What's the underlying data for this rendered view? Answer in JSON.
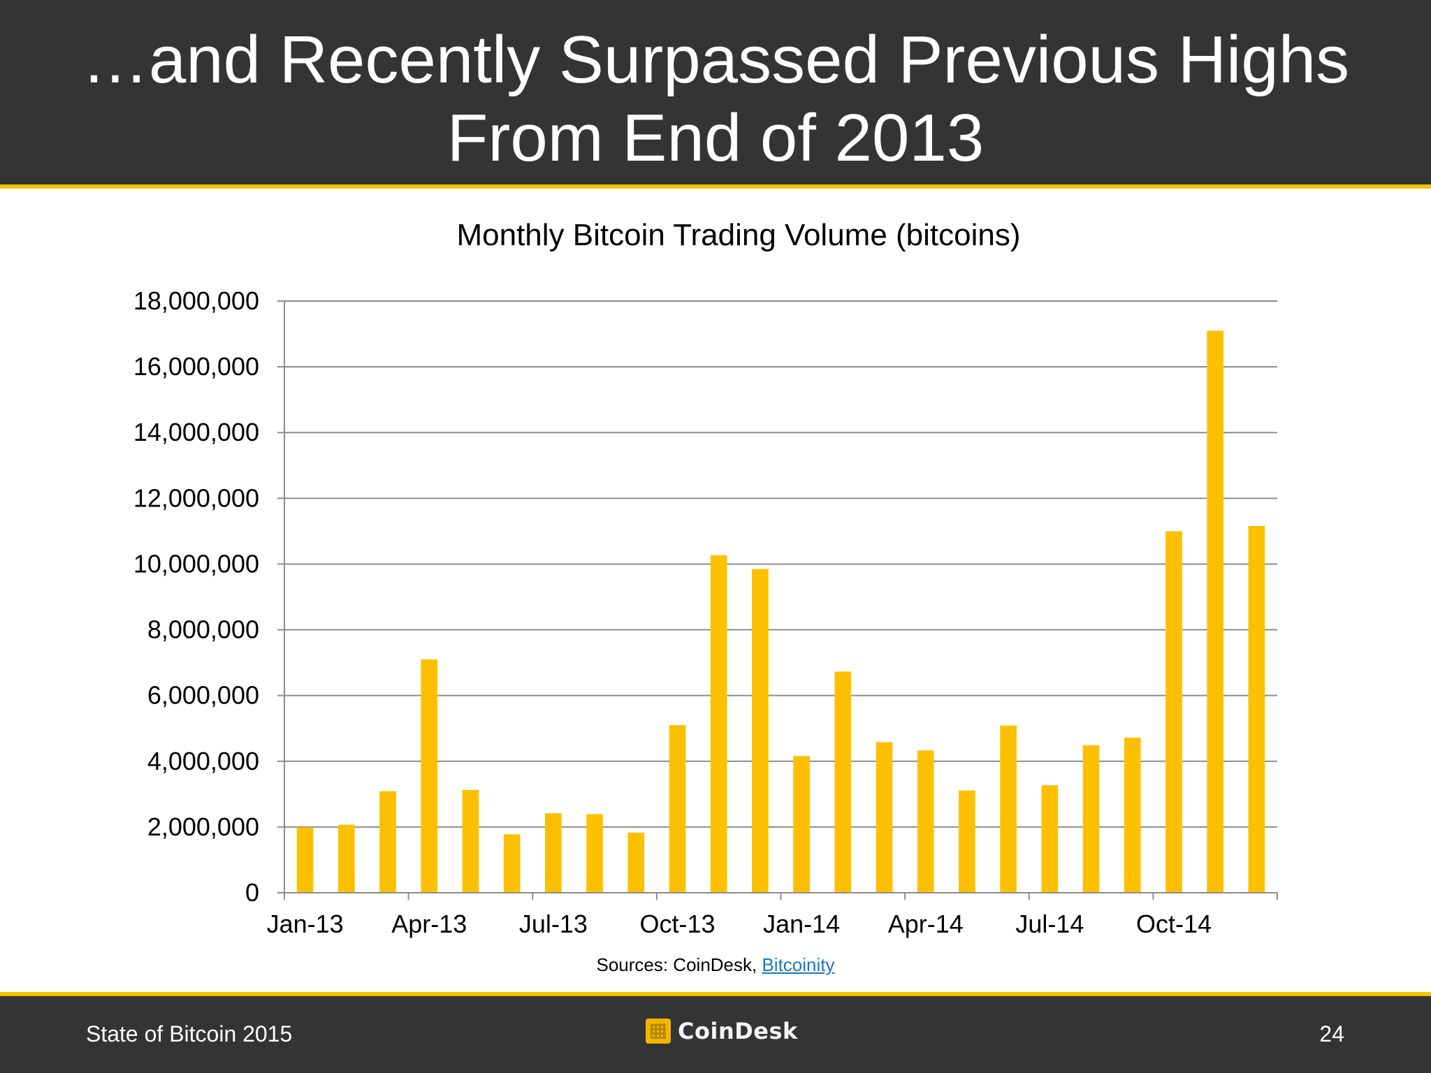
{
  "slide": {
    "title_line1": "…and Recently Surpassed Previous Highs",
    "title_line2": "From End of 2013",
    "sources_prefix": "Sources: CoinDesk, ",
    "sources_link": "Bitcoinity",
    "footer_left": "State of Bitcoin 2015",
    "footer_brand": "CoinDesk",
    "page_number": "24",
    "colors": {
      "header_bg": "#343434",
      "accent": "#f2c200",
      "bar": "#fdc000",
      "link": "#1a76c7"
    },
    "icons": {
      "brand_logo": "coindesk-logo-icon"
    }
  },
  "chart_data": {
    "type": "bar",
    "title": "Monthly Bitcoin Trading Volume (bitcoins)",
    "xlabel": "",
    "ylabel": "",
    "ylim": [
      0,
      18000000
    ],
    "yticks": [
      0,
      2000000,
      4000000,
      6000000,
      8000000,
      10000000,
      12000000,
      14000000,
      16000000,
      18000000
    ],
    "ytick_labels": [
      "0",
      "2,000,000",
      "4,000,000",
      "6,000,000",
      "8,000,000",
      "10,000,000",
      "12,000,000",
      "14,000,000",
      "16,000,000",
      "18,000,000"
    ],
    "categories": [
      "Jan-13",
      "Feb-13",
      "Mar-13",
      "Apr-13",
      "May-13",
      "Jun-13",
      "Jul-13",
      "Aug-13",
      "Sep-13",
      "Oct-13",
      "Nov-13",
      "Dec-13",
      "Jan-14",
      "Feb-14",
      "Mar-14",
      "Apr-14",
      "May-14",
      "Jun-14",
      "Jul-14",
      "Aug-14",
      "Sep-14",
      "Oct-14",
      "Nov-14",
      "Dec-14"
    ],
    "xtick_labels": [
      {
        "index": 0,
        "label": "Jan-13"
      },
      {
        "index": 3,
        "label": "Apr-13"
      },
      {
        "index": 6,
        "label": "Jul-13"
      },
      {
        "index": 9,
        "label": "Oct-13"
      },
      {
        "index": 12,
        "label": "Jan-14"
      },
      {
        "index": 15,
        "label": "Apr-14"
      },
      {
        "index": 18,
        "label": "Jul-14"
      },
      {
        "index": 21,
        "label": "Oct-14"
      }
    ],
    "values": [
      1990000,
      2070000,
      3090000,
      7100000,
      3130000,
      1780000,
      2420000,
      2390000,
      1830000,
      5100000,
      10270000,
      9850000,
      4160000,
      6730000,
      4580000,
      4330000,
      3110000,
      5090000,
      3270000,
      4490000,
      4720000,
      11000000,
      17100000,
      11160000
    ],
    "grid": true,
    "legend": "none"
  }
}
